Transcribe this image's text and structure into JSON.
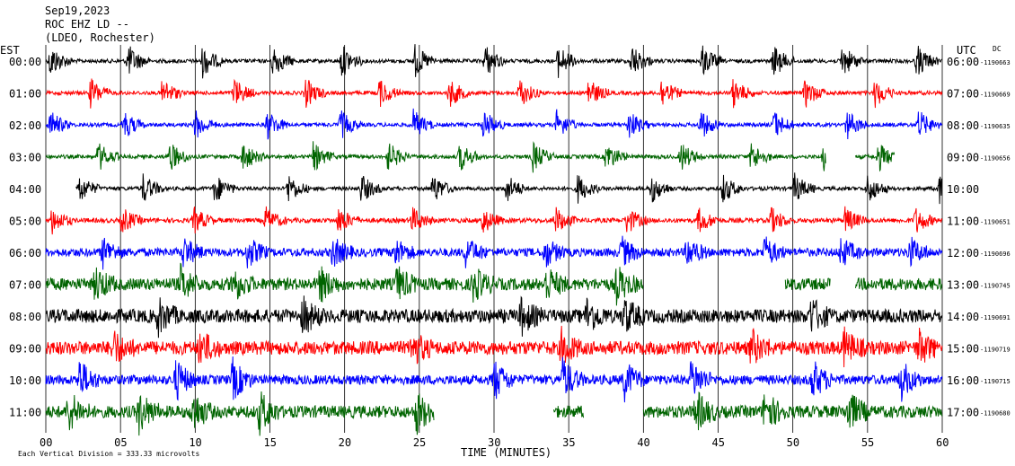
{
  "header": {
    "date": "Sep19,2023",
    "station": "ROC EHZ LD --",
    "network": "(LDEO, Rochester)"
  },
  "axes": {
    "left_label": "EST",
    "right_label": "UTC",
    "dc_label": "DC",
    "xlabel": "TIME (MINUTES)",
    "scale_note": "Each Vertical Division = 333.33 microvolts",
    "x_ticks": [
      "00",
      "05",
      "10",
      "15",
      "20",
      "25",
      "30",
      "35",
      "40",
      "45",
      "50",
      "55",
      "60"
    ]
  },
  "colors": {
    "black": "#000000",
    "red": "#ff0000",
    "blue": "#0000ff",
    "green": "#006400"
  },
  "chart_data": {
    "type": "line",
    "title": "ROC EHZ LD --",
    "xlabel": "TIME (MINUTES)",
    "xlim": [
      0,
      60
    ],
    "grid": "vertical lines every 5 minutes",
    "rows": [
      {
        "est": "00:00",
        "utc": "06:00",
        "dc": "-1190663",
        "color": "black",
        "noise": 0.15,
        "bursts": [
          0.3,
          5.5,
          10.5,
          15.2,
          19.8,
          24.7,
          29.4,
          34.3,
          39.2,
          43.9,
          48.7,
          53.3,
          58.3
        ],
        "burst_amp": 1.0,
        "start": 0.0,
        "end": 60.0
      },
      {
        "est": "01:00",
        "utc": "07:00",
        "dc": "-1190669",
        "color": "red",
        "noise": 0.15,
        "bursts": [
          3,
          7.8,
          12.6,
          17.4,
          22.3,
          27,
          31.7,
          36.3,
          41.2,
          46,
          50.8,
          55.5
        ],
        "burst_amp": 0.9,
        "start": 0.0,
        "end": 60.0
      },
      {
        "est": "02:00",
        "utc": "08:00",
        "dc": "-1190635",
        "color": "blue",
        "noise": 0.15,
        "bursts": [
          0.3,
          5.2,
          10,
          14.8,
          19.7,
          24.6,
          29.3,
          34.2,
          39,
          43.8,
          48.7,
          53.6,
          58.4
        ],
        "burst_amp": 0.9,
        "start": 0.0,
        "end": 60.0
      },
      {
        "est": "03:00",
        "utc": "09:00",
        "dc": "-1190656",
        "color": "green",
        "noise": 0.15,
        "bursts": [
          3.5,
          8.3,
          13.2,
          17.9,
          22.9,
          27.7,
          32.6,
          37.5,
          42.5,
          47.2,
          52.0,
          55.7
        ],
        "burst_amp": 0.9,
        "start": 0.0,
        "end": 52.2,
        "extra": {
          "start": 54.2,
          "end": 56.8
        }
      },
      {
        "est": "04:00",
        "utc": "10:00",
        "dc": "",
        "color": "black",
        "noise": 0.15,
        "bursts": [
          2.2,
          6.5,
          11.3,
          16.2,
          21.1,
          25.9,
          30.8,
          35.6,
          40.5,
          45.3,
          50.1,
          55.0,
          59.8
        ],
        "burst_amp": 0.9,
        "start": 2.0,
        "end": 60.0
      },
      {
        "est": "05:00",
        "utc": "11:00",
        "dc": "-1190651",
        "color": "red",
        "noise": 0.2,
        "bursts": [
          0.4,
          5.1,
          9.9,
          14.7,
          19.6,
          24.5,
          29.2,
          34.1,
          38.9,
          43.7,
          48.5,
          53.5,
          58.2
        ],
        "burst_amp": 0.8,
        "start": 0.0,
        "end": 60.0
      },
      {
        "est": "06:00",
        "utc": "12:00",
        "dc": "-1190696",
        "color": "blue",
        "noise": 0.4,
        "bursts": [
          3.8,
          9.2,
          13.5,
          19.2,
          23.3,
          28.1,
          33.4,
          38.5,
          42.9,
          48.1,
          53.2,
          57.8
        ],
        "burst_amp": 0.9,
        "start": 0.0,
        "end": 60.0
      },
      {
        "est": "07:00",
        "utc": "13:00",
        "dc": "-1190745",
        "color": "green",
        "noise": 0.55,
        "bursts": [
          3.3,
          9.0,
          12.5,
          18.3,
          23.5,
          28.6,
          33.5,
          38.2
        ],
        "burst_amp": 1.0,
        "start": 0.0,
        "end": 40.0,
        "extra": {
          "start": 49.5,
          "end": 52.5
        },
        "extra2": {
          "start": 54.2,
          "end": 60.0
        }
      },
      {
        "est": "08:00",
        "utc": "14:00",
        "dc": "-1190691",
        "color": "black",
        "noise": 0.6,
        "bursts": [
          7.5,
          17.2,
          31.8,
          36.2,
          38.7,
          51.2
        ],
        "burst_amp": 1.0,
        "start": 0.0,
        "end": 60.0
      },
      {
        "est": "09:00",
        "utc": "15:00",
        "dc": "-1190719",
        "color": "red",
        "noise": 0.6,
        "bursts": [
          4.5,
          10.3,
          24.5,
          34.5,
          47.2,
          53.4,
          58.4
        ],
        "burst_amp": 1.0,
        "start": 0.0,
        "end": 60.0
      },
      {
        "est": "10:00",
        "utc": "16:00",
        "dc": "-1190715",
        "color": "blue",
        "noise": 0.45,
        "bursts": [
          2.2,
          8.7,
          12.5,
          30.0,
          34.6,
          38.7,
          43.2,
          51.3,
          57.2
        ],
        "burst_amp": 1.2,
        "start": 0.0,
        "end": 60.0
      },
      {
        "est": "11:00",
        "utc": "17:00",
        "dc": "-1190680",
        "color": "green",
        "noise": 0.55,
        "bursts": [
          1.5,
          6.2,
          9.8,
          14.3,
          24.8,
          43.5,
          48.1,
          53.7
        ],
        "burst_amp": 1.2,
        "start": 0.0,
        "end": 26.0,
        "extra": {
          "start": 34.0,
          "end": 36.0
        },
        "extra2": {
          "start": 40.0,
          "end": 60.0
        }
      }
    ]
  }
}
